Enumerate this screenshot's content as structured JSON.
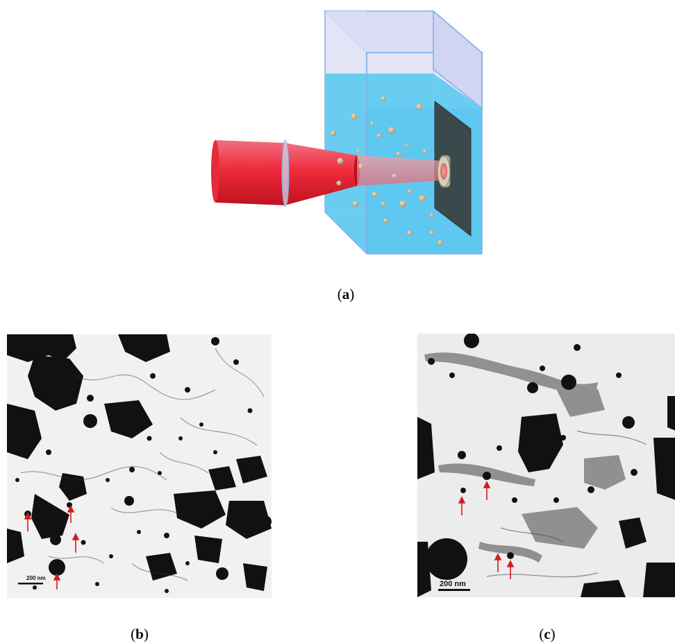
{
  "figure": {
    "panels": [
      {
        "id": "a",
        "caption_label": "a"
      },
      {
        "id": "b",
        "caption_label": "b",
        "scale_bar": "200 nm"
      },
      {
        "id": "c",
        "caption_label": "c",
        "scale_bar": "200 nm"
      }
    ]
  },
  "colors": {
    "laser": "#e8283a",
    "liquid": "#5fd0f5",
    "glass_edge": "#7aaee8",
    "target": "#3a4a4c",
    "nanoparticle": "#c9b48e",
    "arrow": "#d41c1c"
  },
  "icons": {
    "laser_beam": "laser-beam-icon",
    "lens": "lens-icon",
    "cuvette": "cuvette-icon",
    "target": "target-plate-icon"
  }
}
